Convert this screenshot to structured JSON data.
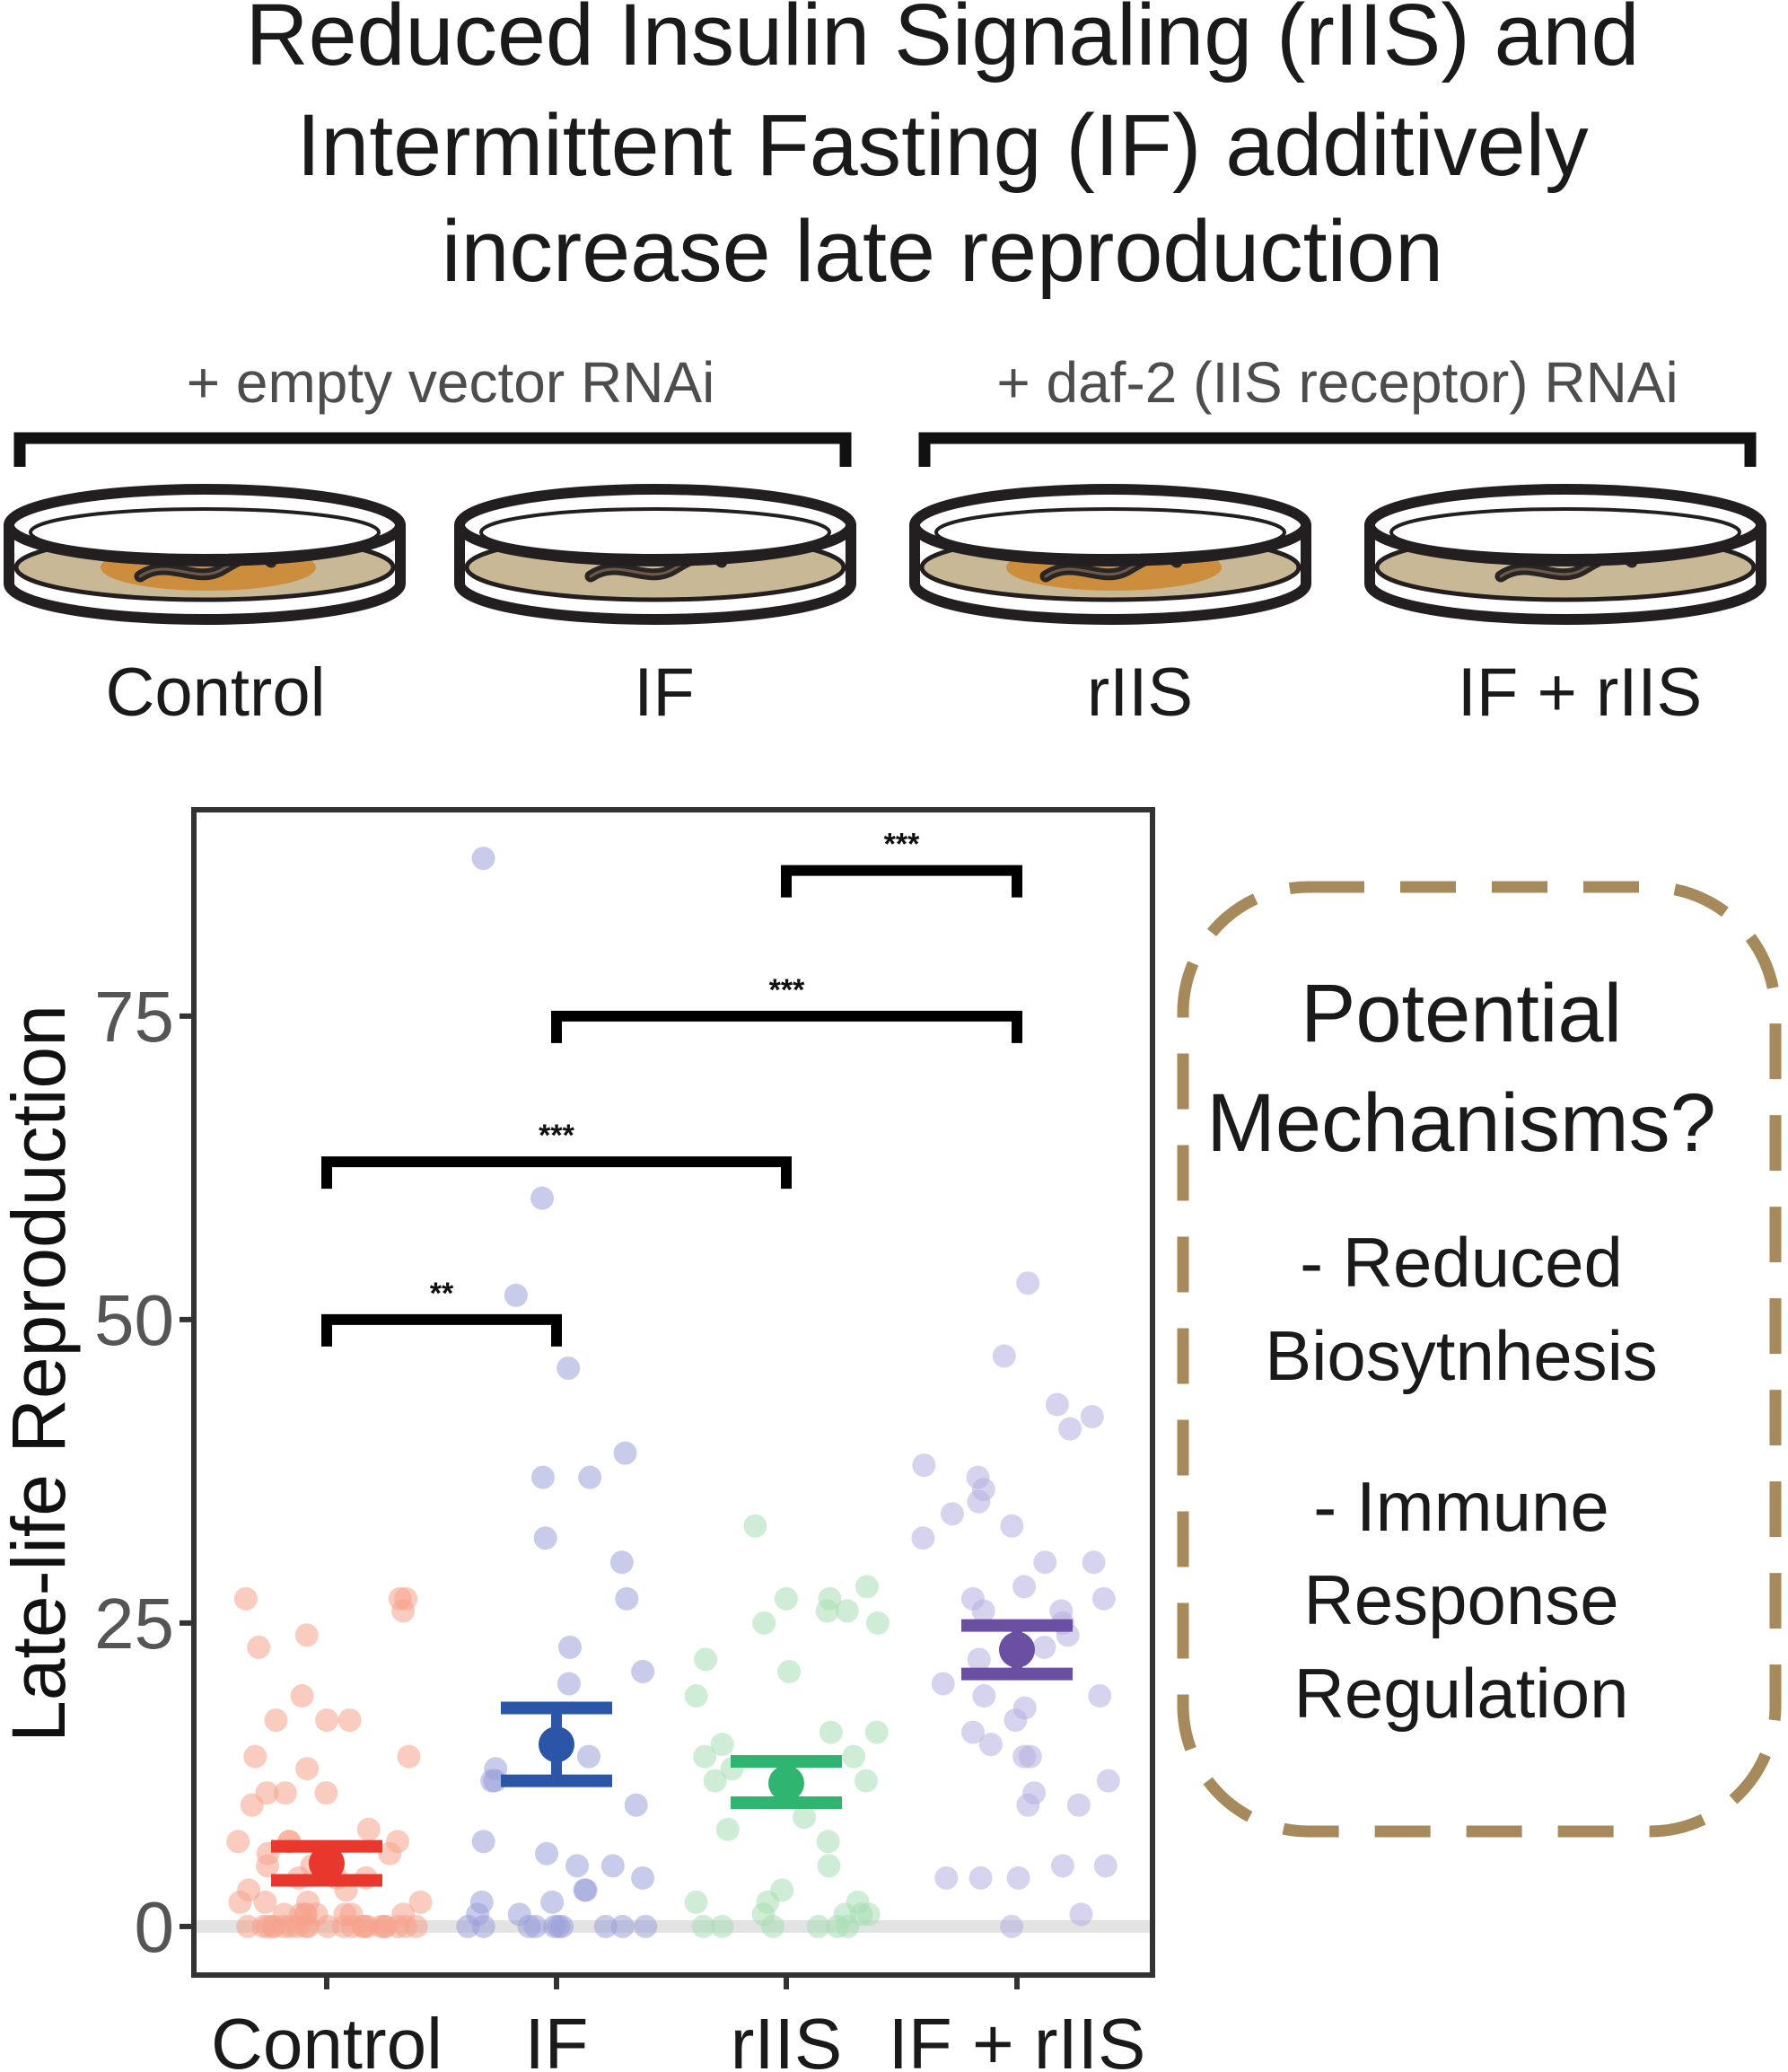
{
  "title_lines": [
    "Reduced Insulin Signaling (rIIS) and",
    "Intermittent Fasting (IF) additively",
    "increase late reproduction"
  ],
  "group_labels": [
    "+ empty vector RNAi",
    "+ daf-2 (IIS receptor) RNAi"
  ],
  "conditions": [
    "Control",
    "IF",
    "rIIS",
    "IF + rIIS"
  ],
  "colors": {
    "control": "#e8372c",
    "if": "#2b55a6",
    "riis": "#2fb56f",
    "if_riis": "#6a4fa3",
    "control_pts": "#f5a38c",
    "if_pts": "#9aa0d8",
    "riis_pts": "#a7dfb5",
    "if_riis_pts": "#b4aee0",
    "dish_outline": "#231f20",
    "dish_medium": "#c9b896",
    "bacteria": "#cc8e3c",
    "mech_border": "#a68a5b"
  },
  "mechanisms": {
    "title_lines": [
      "Potential",
      "Mechanisms?"
    ],
    "items": [
      [
        "- Reduced",
        "Biosytnhesis"
      ],
      [
        "- Immune",
        "Response",
        "Regulation"
      ]
    ]
  },
  "chart_data": {
    "type": "scatter",
    "title": "",
    "xlabel": "",
    "ylabel": "Late-life Reproduction",
    "categories": [
      "Control",
      "IF",
      "rIIS",
      "IF + rIIS"
    ],
    "yticks": [
      0,
      25,
      50,
      75
    ],
    "ytick_labels": [
      "0",
      "25",
      "50",
      "75"
    ],
    "ylim": [
      -4,
      92
    ],
    "grid": false,
    "hline": 0,
    "series": [
      {
        "name": "Control",
        "mean": 5.2,
        "se_low": 3.8,
        "se_high": 6.6,
        "points": [
          27,
          27,
          27,
          24,
          26,
          23,
          19,
          17,
          17,
          17,
          14,
          14,
          13,
          11,
          11,
          11,
          10,
          8,
          7,
          7,
          7,
          7,
          6,
          6,
          5,
          5,
          4,
          4,
          4,
          3,
          3,
          2,
          2,
          2,
          2,
          1,
          1,
          1,
          1,
          1,
          1,
          1,
          1,
          0,
          0,
          0,
          0,
          0,
          0,
          0,
          0,
          0,
          0,
          0,
          0,
          0,
          0,
          0,
          0,
          0,
          0,
          0,
          0,
          0,
          0
        ]
      },
      {
        "name": "IF",
        "mean": 15,
        "se_low": 12,
        "se_high": 18,
        "points": [
          88,
          60,
          52,
          46,
          39,
          37,
          37,
          32,
          30,
          27,
          23,
          21,
          20,
          14,
          13,
          12,
          12,
          10,
          7,
          6,
          5,
          5,
          4,
          3,
          3,
          2,
          2,
          1,
          1,
          0,
          0,
          0,
          0,
          0,
          0,
          0,
          0,
          0,
          0
        ]
      },
      {
        "name": "rIIS",
        "mean": 11.8,
        "se_low": 10.2,
        "se_high": 13.6,
        "points": [
          33,
          28,
          27,
          27,
          26,
          26,
          25,
          25,
          22,
          21,
          19,
          16,
          16,
          15,
          14,
          14,
          13,
          12,
          12,
          9,
          8,
          7,
          5,
          3,
          2,
          2,
          2,
          1,
          1,
          1,
          1,
          0,
          0,
          0,
          0,
          0,
          0
        ]
      },
      {
        "name": "IF + rIIS",
        "mean": 22.8,
        "se_low": 20.8,
        "se_high": 24.8,
        "points": [
          53,
          47,
          43,
          42,
          41,
          38,
          37,
          36,
          35,
          34,
          33,
          32,
          30,
          30,
          28,
          27,
          27,
          26,
          26,
          25,
          24,
          23,
          23,
          22,
          20,
          19,
          19,
          18,
          17,
          16,
          15,
          14,
          14,
          12,
          11,
          10,
          10,
          5,
          5,
          4,
          4,
          4,
          1,
          0
        ]
      }
    ],
    "significance": [
      {
        "from": "Control",
        "to": "IF",
        "label": "**"
      },
      {
        "from": "Control",
        "to": "rIIS",
        "label": "***"
      },
      {
        "from": "IF",
        "to": "IF + rIIS",
        "label": "***"
      },
      {
        "from": "rIIS",
        "to": "IF + rIIS",
        "label": "***"
      }
    ]
  }
}
